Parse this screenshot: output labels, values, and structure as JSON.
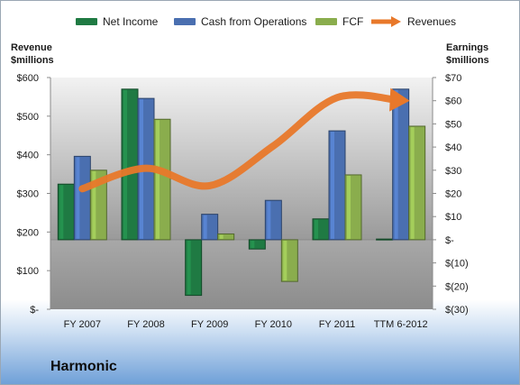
{
  "company": "Harmonic",
  "chart_data": {
    "type": "bar",
    "title": "",
    "categories": [
      "FY 2007",
      "FY 2008",
      "FY 2009",
      "FY 2010",
      "FY 2011",
      "TTM 6-2012"
    ],
    "left_axis": {
      "label_line1": "Revenue",
      "label_line2": "$millions",
      "ylim": [
        0,
        600
      ],
      "ticks": [
        0,
        100,
        200,
        300,
        400,
        500,
        600
      ],
      "tick_labels": [
        "$-",
        "$100",
        "$200",
        "$300",
        "$400",
        "$500",
        "$600"
      ]
    },
    "right_axis": {
      "label_line1": "Earnings",
      "label_line2": "$millions",
      "ylim": [
        -30,
        70
      ],
      "ticks": [
        -30,
        -20,
        -10,
        0,
        10,
        20,
        30,
        40,
        50,
        60,
        70
      ],
      "tick_labels": [
        "$(30)",
        "$(20)",
        "$(10)",
        "$-",
        "$10",
        "$20",
        "$30",
        "$40",
        "$50",
        "$60",
        "$70"
      ]
    },
    "series": [
      {
        "name": "Net Income",
        "axis": "right",
        "kind": "bar",
        "color": "#1f7a43",
        "values": [
          24,
          65,
          -24,
          -4,
          9,
          0.3
        ]
      },
      {
        "name": "Cash from Operations",
        "axis": "right",
        "kind": "bar",
        "color": "#4a6fb0",
        "values": [
          36,
          61,
          11,
          17,
          47,
          65
        ]
      },
      {
        "name": "FCF",
        "axis": "right",
        "kind": "bar",
        "color": "#8aad4d",
        "values": [
          30,
          52,
          2.5,
          -18,
          28,
          49
        ]
      },
      {
        "name": "Revenues",
        "axis": "left",
        "kind": "line",
        "color": "#e8782a",
        "values": [
          312,
          365,
          320,
          423,
          548,
          540
        ]
      }
    ],
    "legend_position": "top",
    "grid": false
  }
}
